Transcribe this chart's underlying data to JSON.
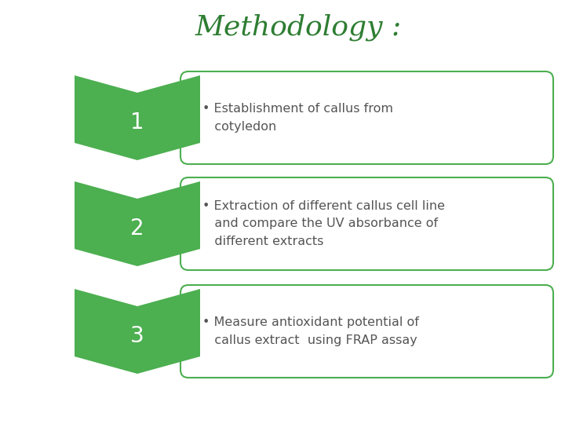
{
  "title": "Methodology :",
  "title_color": "#2e7d32",
  "title_fontsize": 26,
  "background_color": "#ffffff",
  "arrow_color": "#4caf50",
  "arrow_border_color": "#4caf50",
  "box_border_color": "#4caf50",
  "box_fill_color": "#ffffff",
  "number_color": "#ffffff",
  "number_fontsize": 20,
  "text_color": "#555555",
  "text_fontsize": 11.5,
  "steps": [
    {
      "number": "1",
      "text": "• Establishment of callus from\n   cotyledon"
    },
    {
      "number": "2",
      "text": "• Extraction of different callus cell line\n   and compare the UV absorbance of\n   different extracts"
    },
    {
      "number": "3",
      "text": "• Measure antioxidant potential of\n   callus extract  using FRAP assay"
    }
  ],
  "figwidth": 7.2,
  "figheight": 5.4,
  "dpi": 100
}
